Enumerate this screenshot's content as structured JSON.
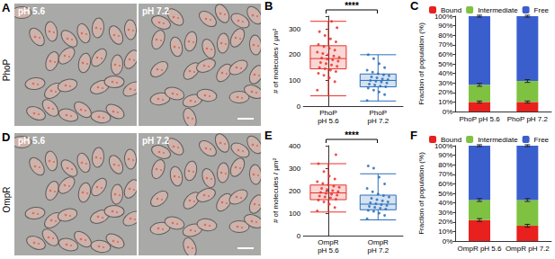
{
  "image_panels": [
    {
      "panel": "A",
      "row_label": "PhoP",
      "labels": [
        "pH 5.6",
        "pH 7.2"
      ]
    },
    {
      "panel": "D",
      "row_label": "OmpR",
      "labels": [
        "pH 5.6",
        "pH 7.2"
      ]
    }
  ],
  "chart_data": [
    {
      "panel": "B",
      "type": "boxplot",
      "ylabel": "# of molecules / µm²",
      "categories": [
        "PhoP pH 5.6",
        "PhoP pH 7.2"
      ],
      "colors": [
        "#e8302a",
        "#2a6ebb"
      ],
      "boxes": [
        [
          40,
          145,
          185,
          235,
          330
        ],
        [
          20,
          75,
          100,
          125,
          200
        ]
      ],
      "points": [
        [
          62,
          95,
          110,
          120,
          128,
          135,
          140,
          145,
          150,
          155,
          160,
          165,
          170,
          175,
          180,
          183,
          187,
          190,
          195,
          200,
          205,
          210,
          218,
          225,
          232,
          240,
          250,
          262,
          275,
          290,
          305,
          330
        ],
        [
          22,
          45,
          55,
          62,
          70,
          75,
          78,
          82,
          86,
          90,
          94,
          97,
          100,
          103,
          106,
          110,
          114,
          118,
          122,
          126,
          132,
          140,
          150,
          165,
          185,
          200
        ]
      ],
      "ylim": [
        0,
        350
      ],
      "yticks": [
        0,
        100,
        200,
        300
      ],
      "annotation": "****"
    },
    {
      "panel": "C",
      "type": "bar",
      "stacked": true,
      "ylabel": "Fraction of population (%)",
      "categories": [
        "PhoP pH 5.6",
        "PhoP pH 7.2"
      ],
      "legend": "top",
      "series": [
        {
          "name": "Bound",
          "color": "#e8201e",
          "values": [
            10,
            10
          ],
          "errors": [
            1,
            1
          ]
        },
        {
          "name": "Intermediate",
          "color": "#7fc241",
          "values": [
            18,
            22
          ],
          "errors": [
            1.5,
            1.5
          ]
        },
        {
          "name": "Free",
          "color": "#3a5fcd",
          "values": [
            72,
            68
          ],
          "errors": [
            1,
            1
          ]
        }
      ],
      "ylim": [
        0,
        100
      ],
      "yticks": [
        {
          "value": 0,
          "label": "0%"
        },
        {
          "value": 10,
          "label": "10%"
        },
        {
          "value": 20,
          "label": "20%"
        },
        {
          "value": 30,
          "label": "30%"
        },
        {
          "value": 40,
          "label": "40%"
        },
        {
          "value": 50,
          "label": "50%"
        },
        {
          "value": 60,
          "label": "60%"
        },
        {
          "value": 70,
          "label": "70%"
        },
        {
          "value": 80,
          "label": "80%"
        },
        {
          "value": 90,
          "label": "90%"
        },
        {
          "value": 100,
          "label": "100%"
        }
      ]
    },
    {
      "panel": "E",
      "type": "boxplot",
      "ylabel": "# of molecules / µm²",
      "categories": [
        "OmpR pH 5.6",
        "OmpR pH 7.2"
      ],
      "colors": [
        "#e8302a",
        "#2a6ebb"
      ],
      "boxes": [
        [
          105,
          160,
          190,
          225,
          320
        ],
        [
          70,
          115,
          140,
          180,
          275
        ]
      ],
      "points": [
        [
          110,
          125,
          140,
          150,
          158,
          162,
          168,
          172,
          176,
          180,
          184,
          188,
          192,
          196,
          200,
          205,
          210,
          215,
          220,
          226,
          232,
          240,
          252,
          265,
          285,
          320,
          360
        ],
        [
          75,
          90,
          100,
          108,
          112,
          118,
          122,
          126,
          130,
          134,
          138,
          142,
          146,
          150,
          155,
          160,
          166,
          172,
          178,
          185,
          195,
          210,
          230,
          260,
          300,
          310
        ]
      ],
      "ylim": [
        0,
        400
      ],
      "yticks": [
        0,
        100,
        200,
        300,
        400
      ],
      "annotation": "****"
    },
    {
      "panel": "F",
      "type": "bar",
      "stacked": true,
      "ylabel": "Fraction of population (%)",
      "categories": [
        "OmpR pH 5.6",
        "OmpR pH 7.2"
      ],
      "legend": "top",
      "series": [
        {
          "name": "Bound",
          "color": "#e8201e",
          "values": [
            22,
            16
          ],
          "errors": [
            1.5,
            1.5
          ]
        },
        {
          "name": "Intermediate",
          "color": "#7fc241",
          "values": [
            21,
            27
          ],
          "errors": [
            1.5,
            1.5
          ]
        },
        {
          "name": "Free",
          "color": "#3a5fcd",
          "values": [
            57,
            57
          ],
          "errors": [
            1,
            1
          ]
        }
      ],
      "ylim": [
        0,
        100
      ],
      "yticks": [
        {
          "value": 0,
          "label": "0%"
        },
        {
          "value": 10,
          "label": "10%"
        },
        {
          "value": 20,
          "label": "20%"
        },
        {
          "value": 30,
          "label": "30%"
        },
        {
          "value": 40,
          "label": "40%"
        },
        {
          "value": 50,
          "label": "50%"
        },
        {
          "value": 60,
          "label": "60%"
        },
        {
          "value": 70,
          "label": "70%"
        },
        {
          "value": 80,
          "label": "80%"
        },
        {
          "value": 90,
          "label": "90%"
        },
        {
          "value": 100,
          "label": "100%"
        }
      ]
    }
  ]
}
